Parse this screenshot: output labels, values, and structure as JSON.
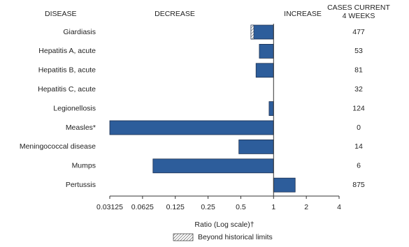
{
  "chart_data": {
    "type": "bar",
    "orientation": "horizontal",
    "headers": {
      "disease": "DISEASE",
      "decrease": "DECREASE",
      "increase": "INCREASE",
      "cases": [
        "CASES CURRENT",
        "4 WEEKS"
      ]
    },
    "categories": [
      "Giardiasis",
      "Hepatitis A, acute",
      "Hepatitis B, acute",
      "Hepatitis C, acute",
      "Legionellosis",
      "Measles*",
      "Meningococcal disease",
      "Mumps",
      "Pertussis"
    ],
    "values": [
      0.62,
      0.74,
      0.69,
      1.0,
      0.91,
      0.03125,
      0.48,
      0.078,
      1.58
    ],
    "beyond_historical_limits": [
      true,
      false,
      false,
      false,
      false,
      false,
      false,
      false,
      false
    ],
    "cases_current_4_weeks": [
      477,
      53,
      81,
      32,
      124,
      0,
      14,
      6,
      875
    ],
    "color": "#2d5d9b",
    "log_scale": true,
    "log_base": 2,
    "xlim": [
      0.03125,
      4
    ],
    "xticks": [
      0.03125,
      0.0625,
      0.125,
      0.25,
      0.5,
      1,
      2,
      4
    ],
    "xlabel": "Ratio (Log scale)†",
    "legend": "Beyond historical limits"
  }
}
